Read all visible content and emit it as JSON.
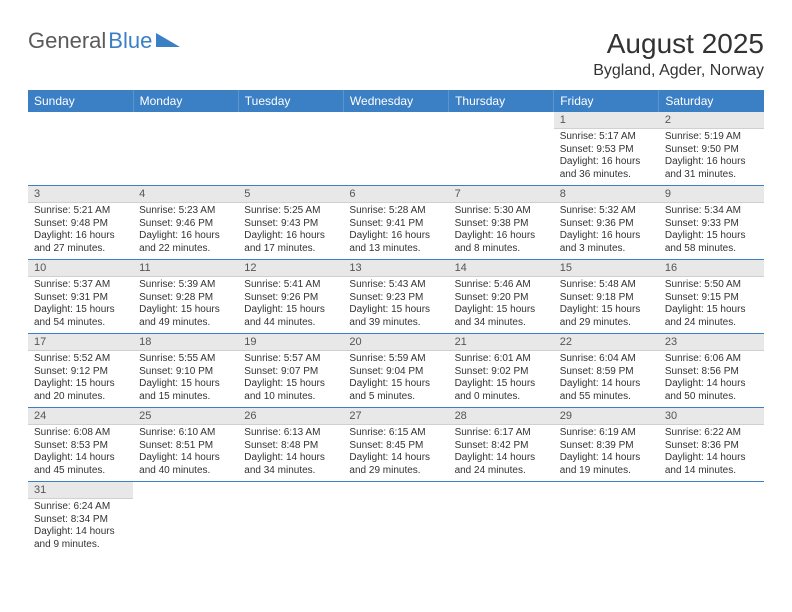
{
  "logo": {
    "part1": "General",
    "part2": "Blue"
  },
  "title": "August 2025",
  "location": "Bygland, Agder, Norway",
  "colors": {
    "header_bg": "#3b7fc4",
    "header_text": "#ffffff",
    "daynum_bg": "#e8e8e8",
    "row_border": "#3b7fc4",
    "text": "#333333"
  },
  "day_headers": [
    "Sunday",
    "Monday",
    "Tuesday",
    "Wednesday",
    "Thursday",
    "Friday",
    "Saturday"
  ],
  "weeks": [
    [
      {
        "n": "",
        "sr": "",
        "ss": "",
        "dl": ""
      },
      {
        "n": "",
        "sr": "",
        "ss": "",
        "dl": ""
      },
      {
        "n": "",
        "sr": "",
        "ss": "",
        "dl": ""
      },
      {
        "n": "",
        "sr": "",
        "ss": "",
        "dl": ""
      },
      {
        "n": "",
        "sr": "",
        "ss": "",
        "dl": ""
      },
      {
        "n": "1",
        "sr": "Sunrise: 5:17 AM",
        "ss": "Sunset: 9:53 PM",
        "dl": "Daylight: 16 hours and 36 minutes."
      },
      {
        "n": "2",
        "sr": "Sunrise: 5:19 AM",
        "ss": "Sunset: 9:50 PM",
        "dl": "Daylight: 16 hours and 31 minutes."
      }
    ],
    [
      {
        "n": "3",
        "sr": "Sunrise: 5:21 AM",
        "ss": "Sunset: 9:48 PM",
        "dl": "Daylight: 16 hours and 27 minutes."
      },
      {
        "n": "4",
        "sr": "Sunrise: 5:23 AM",
        "ss": "Sunset: 9:46 PM",
        "dl": "Daylight: 16 hours and 22 minutes."
      },
      {
        "n": "5",
        "sr": "Sunrise: 5:25 AM",
        "ss": "Sunset: 9:43 PM",
        "dl": "Daylight: 16 hours and 17 minutes."
      },
      {
        "n": "6",
        "sr": "Sunrise: 5:28 AM",
        "ss": "Sunset: 9:41 PM",
        "dl": "Daylight: 16 hours and 13 minutes."
      },
      {
        "n": "7",
        "sr": "Sunrise: 5:30 AM",
        "ss": "Sunset: 9:38 PM",
        "dl": "Daylight: 16 hours and 8 minutes."
      },
      {
        "n": "8",
        "sr": "Sunrise: 5:32 AM",
        "ss": "Sunset: 9:36 PM",
        "dl": "Daylight: 16 hours and 3 minutes."
      },
      {
        "n": "9",
        "sr": "Sunrise: 5:34 AM",
        "ss": "Sunset: 9:33 PM",
        "dl": "Daylight: 15 hours and 58 minutes."
      }
    ],
    [
      {
        "n": "10",
        "sr": "Sunrise: 5:37 AM",
        "ss": "Sunset: 9:31 PM",
        "dl": "Daylight: 15 hours and 54 minutes."
      },
      {
        "n": "11",
        "sr": "Sunrise: 5:39 AM",
        "ss": "Sunset: 9:28 PM",
        "dl": "Daylight: 15 hours and 49 minutes."
      },
      {
        "n": "12",
        "sr": "Sunrise: 5:41 AM",
        "ss": "Sunset: 9:26 PM",
        "dl": "Daylight: 15 hours and 44 minutes."
      },
      {
        "n": "13",
        "sr": "Sunrise: 5:43 AM",
        "ss": "Sunset: 9:23 PM",
        "dl": "Daylight: 15 hours and 39 minutes."
      },
      {
        "n": "14",
        "sr": "Sunrise: 5:46 AM",
        "ss": "Sunset: 9:20 PM",
        "dl": "Daylight: 15 hours and 34 minutes."
      },
      {
        "n": "15",
        "sr": "Sunrise: 5:48 AM",
        "ss": "Sunset: 9:18 PM",
        "dl": "Daylight: 15 hours and 29 minutes."
      },
      {
        "n": "16",
        "sr": "Sunrise: 5:50 AM",
        "ss": "Sunset: 9:15 PM",
        "dl": "Daylight: 15 hours and 24 minutes."
      }
    ],
    [
      {
        "n": "17",
        "sr": "Sunrise: 5:52 AM",
        "ss": "Sunset: 9:12 PM",
        "dl": "Daylight: 15 hours and 20 minutes."
      },
      {
        "n": "18",
        "sr": "Sunrise: 5:55 AM",
        "ss": "Sunset: 9:10 PM",
        "dl": "Daylight: 15 hours and 15 minutes."
      },
      {
        "n": "19",
        "sr": "Sunrise: 5:57 AM",
        "ss": "Sunset: 9:07 PM",
        "dl": "Daylight: 15 hours and 10 minutes."
      },
      {
        "n": "20",
        "sr": "Sunrise: 5:59 AM",
        "ss": "Sunset: 9:04 PM",
        "dl": "Daylight: 15 hours and 5 minutes."
      },
      {
        "n": "21",
        "sr": "Sunrise: 6:01 AM",
        "ss": "Sunset: 9:02 PM",
        "dl": "Daylight: 15 hours and 0 minutes."
      },
      {
        "n": "22",
        "sr": "Sunrise: 6:04 AM",
        "ss": "Sunset: 8:59 PM",
        "dl": "Daylight: 14 hours and 55 minutes."
      },
      {
        "n": "23",
        "sr": "Sunrise: 6:06 AM",
        "ss": "Sunset: 8:56 PM",
        "dl": "Daylight: 14 hours and 50 minutes."
      }
    ],
    [
      {
        "n": "24",
        "sr": "Sunrise: 6:08 AM",
        "ss": "Sunset: 8:53 PM",
        "dl": "Daylight: 14 hours and 45 minutes."
      },
      {
        "n": "25",
        "sr": "Sunrise: 6:10 AM",
        "ss": "Sunset: 8:51 PM",
        "dl": "Daylight: 14 hours and 40 minutes."
      },
      {
        "n": "26",
        "sr": "Sunrise: 6:13 AM",
        "ss": "Sunset: 8:48 PM",
        "dl": "Daylight: 14 hours and 34 minutes."
      },
      {
        "n": "27",
        "sr": "Sunrise: 6:15 AM",
        "ss": "Sunset: 8:45 PM",
        "dl": "Daylight: 14 hours and 29 minutes."
      },
      {
        "n": "28",
        "sr": "Sunrise: 6:17 AM",
        "ss": "Sunset: 8:42 PM",
        "dl": "Daylight: 14 hours and 24 minutes."
      },
      {
        "n": "29",
        "sr": "Sunrise: 6:19 AM",
        "ss": "Sunset: 8:39 PM",
        "dl": "Daylight: 14 hours and 19 minutes."
      },
      {
        "n": "30",
        "sr": "Sunrise: 6:22 AM",
        "ss": "Sunset: 8:36 PM",
        "dl": "Daylight: 14 hours and 14 minutes."
      }
    ],
    [
      {
        "n": "31",
        "sr": "Sunrise: 6:24 AM",
        "ss": "Sunset: 8:34 PM",
        "dl": "Daylight: 14 hours and 9 minutes."
      },
      {
        "n": "",
        "sr": "",
        "ss": "",
        "dl": ""
      },
      {
        "n": "",
        "sr": "",
        "ss": "",
        "dl": ""
      },
      {
        "n": "",
        "sr": "",
        "ss": "",
        "dl": ""
      },
      {
        "n": "",
        "sr": "",
        "ss": "",
        "dl": ""
      },
      {
        "n": "",
        "sr": "",
        "ss": "",
        "dl": ""
      },
      {
        "n": "",
        "sr": "",
        "ss": "",
        "dl": ""
      }
    ]
  ]
}
